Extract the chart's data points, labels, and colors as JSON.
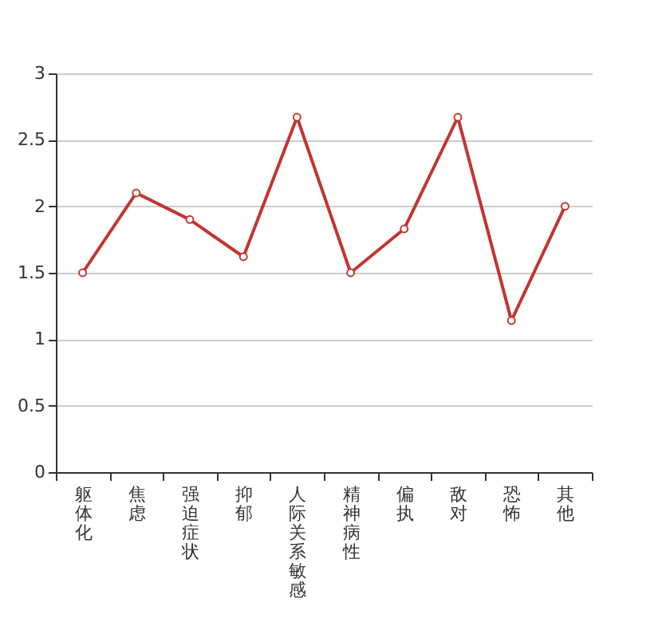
{
  "chart_data": {
    "type": "line",
    "categories": [
      "躯体化",
      "焦虑",
      "强迫症状",
      "抑郁",
      "人际关系敏感",
      "精神病性",
      "偏执",
      "敌对",
      "恐怖",
      "其他"
    ],
    "series": [
      {
        "color": "#c23531",
        "values": [
          1.5,
          2.1,
          1.9,
          1.62,
          2.67,
          1.5,
          1.83,
          2.67,
          1.14,
          2.0
        ]
      }
    ],
    "ylim": [
      0,
      3
    ],
    "yticks": [
      0,
      0.5,
      1,
      1.5,
      2,
      2.5,
      3
    ],
    "grid": "y",
    "marker": "circle",
    "line_style": "solid",
    "legend": false
  }
}
